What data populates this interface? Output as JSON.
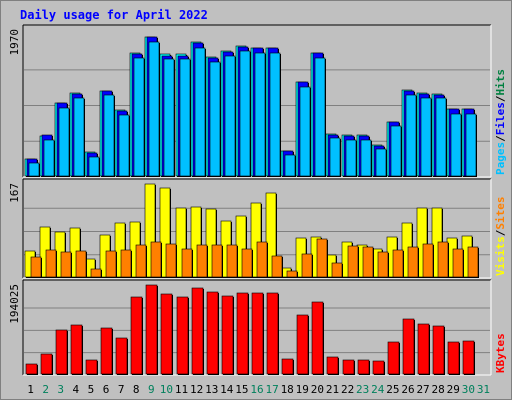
{
  "title": "Daily usage for April 2022",
  "chart_data": [
    {
      "type": "bar",
      "panel": "hits-files-pages",
      "title": "Daily usage for April 2022",
      "max_label": "1970",
      "ylim": [
        0,
        1970
      ],
      "legend": [
        {
          "text": "Pages",
          "color": "#00c0ff"
        },
        {
          "text": "Files",
          "color": "#0000ff"
        },
        {
          "text": "Hits",
          "color": "#008040"
        }
      ],
      "separator": "/",
      "x": [
        1,
        2,
        3,
        4,
        5,
        6,
        7,
        8,
        9,
        10,
        11,
        12,
        13,
        14,
        15,
        16,
        17,
        18,
        19,
        20,
        21,
        22,
        23,
        24,
        25,
        26,
        27,
        28,
        29,
        30,
        31
      ],
      "series": [
        {
          "name": "Hits",
          "color": "#00ffff",
          "values": [
            233,
            550,
            1010,
            1150,
            330,
            1170,
            910,
            1690,
            1920,
            1680,
            1680,
            1850,
            1640,
            1730,
            1790,
            1770,
            1770,
            350,
            1300,
            1700,
            580,
            560,
            560,
            430,
            750,
            1180,
            1150,
            1130,
            930,
            930,
            null
          ]
        },
        {
          "name": "Files",
          "color": "#0000ff",
          "values": [
            240,
            560,
            1000,
            1130,
            320,
            1170,
            900,
            1680,
            1920,
            1660,
            1660,
            1830,
            1630,
            1710,
            1780,
            1760,
            1760,
            340,
            1290,
            1690,
            570,
            550,
            550,
            420,
            740,
            1170,
            1130,
            1120,
            920,
            920,
            null
          ]
        },
        {
          "name": "Pages",
          "color": "#00c0ff",
          "values": [
            180,
            500,
            940,
            1080,
            260,
            1110,
            840,
            1630,
            1850,
            1620,
            1620,
            1770,
            1570,
            1650,
            1720,
            1700,
            1700,
            290,
            1230,
            1630,
            520,
            500,
            500,
            370,
            690,
            1120,
            1080,
            1080,
            860,
            860,
            null
          ]
        }
      ]
    },
    {
      "type": "bar",
      "panel": "visits-sites",
      "max_label": "167",
      "ylim": [
        0,
        167
      ],
      "legend": [
        {
          "text": "Visits",
          "color": "#ffff00"
        },
        {
          "text": "Sites",
          "color": "#ff8000"
        }
      ],
      "separator": "/",
      "x": [
        1,
        2,
        3,
        4,
        5,
        6,
        7,
        8,
        9,
        10,
        11,
        12,
        13,
        14,
        15,
        16,
        17,
        18,
        19,
        20,
        21,
        22,
        23,
        24,
        25,
        26,
        27,
        28,
        29,
        30,
        31
      ],
      "series": [
        {
          "name": "Visits",
          "color": "#ffff00",
          "values": [
            47,
            90,
            80,
            88,
            32,
            76,
            97,
            98,
            168,
            160,
            124,
            125,
            122,
            100,
            110,
            133,
            150,
            17,
            70,
            72,
            40,
            62,
            58,
            50,
            71,
            97,
            124,
            124,
            70,
            73,
            null
          ]
        },
        {
          "name": "Sites",
          "color": "#ff8000",
          "values": [
            35,
            48,
            44,
            46,
            15,
            46,
            48,
            58,
            63,
            60,
            51,
            57,
            58,
            57,
            50,
            62,
            37,
            10,
            42,
            69,
            25,
            55,
            54,
            45,
            48,
            53,
            60,
            62,
            51,
            54,
            null
          ]
        }
      ]
    },
    {
      "type": "bar",
      "panel": "kbytes",
      "max_label": "194025",
      "ylim": [
        0,
        194025
      ],
      "legend": [
        {
          "text": "KBytes",
          "color": "#ff0000"
        }
      ],
      "x": [
        1,
        2,
        3,
        4,
        5,
        6,
        7,
        8,
        9,
        10,
        11,
        12,
        13,
        14,
        15,
        16,
        17,
        18,
        19,
        20,
        21,
        22,
        23,
        24,
        25,
        26,
        27,
        28,
        29,
        30,
        31
      ],
      "series": [
        {
          "name": "KBytes",
          "color": "#ff0000",
          "values": [
            22000,
            44000,
            95000,
            106000,
            30000,
            101000,
            78000,
            168000,
            200000,
            173000,
            167000,
            186000,
            178000,
            169000,
            177000,
            175000,
            175000,
            33000,
            128000,
            157000,
            36000,
            31000,
            31000,
            28000,
            70000,
            120000,
            109000,
            104000,
            69000,
            71000,
            null
          ]
        }
      ]
    }
  ],
  "x_axis": {
    "labels": [
      "1",
      "2",
      "3",
      "4",
      "5",
      "6",
      "7",
      "8",
      "9",
      "10",
      "11",
      "12",
      "13",
      "14",
      "15",
      "16",
      "17",
      "18",
      "19",
      "20",
      "21",
      "22",
      "23",
      "24",
      "25",
      "26",
      "27",
      "28",
      "29",
      "30",
      "31"
    ],
    "weekend": [
      2,
      3,
      9,
      10,
      16,
      17,
      23,
      24,
      30,
      31
    ],
    "weekday_color": "#000000",
    "weekend_color": "#00805c"
  }
}
